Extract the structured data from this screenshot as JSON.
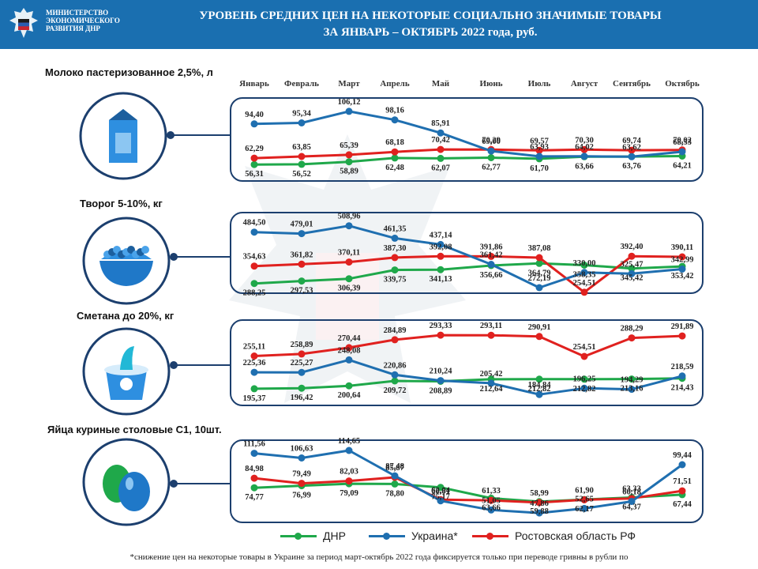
{
  "header": {
    "ministry_lines": [
      "МИНИСТЕРСТВО",
      "ЭКОНОМИЧЕСКОГО",
      "РАЗВИТИЯ ДНР"
    ],
    "title_line1": "УРОВЕНЬ СРЕДНИХ ЦЕН НА НЕКОТОРЫЕ СОЦИАЛЬНО ЗНАЧИМЫЕ ТОВАРЫ",
    "title_line2": "ЗА ЯНВАРЬ – ОКТЯБРЬ 2022 года, руб."
  },
  "months": [
    "Январь",
    "Февраль",
    "Март",
    "Апрель",
    "Май",
    "Июнь",
    "Июль",
    "Август",
    "Сентябрь",
    "Октябрь"
  ],
  "colors": {
    "dnr": "#1fa84a",
    "ukraine": "#1f6fb0",
    "rostov": "#e0211f",
    "header": "#1a6fb0",
    "panel_border": "#1c3f6e"
  },
  "products": [
    {
      "title": "Молоко пастеризованное 2,5%, л",
      "icon": "milk-carton-icon"
    },
    {
      "title": "Творог 5-10%, кг",
      "icon": "cottage-cheese-bowl-icon"
    },
    {
      "title": "Сметана до 20%, кг",
      "icon": "sour-cream-cup-icon"
    },
    {
      "title": "Яйца куриные столовые С1, 10шт.",
      "icon": "eggs-icon"
    }
  ],
  "legend": [
    "ДНР",
    "Украина*",
    "Ростовская область РФ"
  ],
  "footnote": "*снижение цен на некоторые товары в Украине за период март-октябрь 2022 года фиксируется только при переводе гривны в рубли по",
  "chart_data": [
    {
      "type": "line",
      "title": "Молоко пастеризованное 2,5%, л",
      "categories": [
        "Январь",
        "Февраль",
        "Март",
        "Апрель",
        "Май",
        "Июнь",
        "Июль",
        "Август",
        "Сентябрь",
        "Октябрь"
      ],
      "ylim": [
        52,
        112
      ],
      "series": [
        {
          "name": "ДНР",
          "values": [
            56.31,
            56.52,
            58.89,
            62.48,
            62.07,
            62.77,
            61.7,
            63.66,
            63.76,
            64.21
          ],
          "labels": [
            "56,31",
            "56,52",
            "58,89",
            "62,48",
            "62,07",
            "62,77",
            "61,70",
            "63,66",
            "63,76",
            "64,21"
          ]
        },
        {
          "name": "Украина*",
          "values": [
            94.4,
            95.34,
            106.12,
            98.16,
            85.91,
            69.0,
            63.93,
            64.02,
            63.62,
            68.33
          ],
          "labels": [
            "94,40",
            "95,34",
            "106,12",
            "98,16",
            "85,91",
            "69,00",
            "63,93",
            "64,02",
            "63,62",
            "68,33"
          ]
        },
        {
          "name": "Ростовская область РФ",
          "values": [
            62.29,
            63.85,
            65.39,
            68.18,
            70.42,
            70.29,
            69.57,
            70.3,
            69.74,
            70.02
          ],
          "labels": [
            "62,29",
            "63,85",
            "65,39",
            "68,18",
            "70,42",
            "70,29",
            "69,57",
            "70,30",
            "69,74",
            "70,02"
          ]
        }
      ]
    },
    {
      "type": "line",
      "title": "Творог 5-10%, кг",
      "categories": [
        "Январь",
        "Февраль",
        "Март",
        "Апрель",
        "Май",
        "Июнь",
        "Июль",
        "Август",
        "Сентябрь",
        "Октябрь"
      ],
      "ylim": [
        260,
        520
      ],
      "series": [
        {
          "name": "ДНР",
          "values": [
            288.25,
            297.53,
            306.39,
            339.75,
            341.13,
            356.66,
            364.79,
            358.35,
            345.42,
            353.42
          ],
          "labels": [
            "288,25",
            "297,53",
            "306,39",
            "339,75",
            "341,13",
            "356,66",
            "364,79",
            "358,35",
            "345,42",
            "353,42"
          ]
        },
        {
          "name": "Украина*",
          "values": [
            484.5,
            479.01,
            508.96,
            461.35,
            437.14,
            361.42,
            272.19,
            330.0,
            325.47,
            342.99
          ],
          "labels": [
            "484,50",
            "479,01",
            "508,96",
            "461,35",
            "437,14",
            "361,42",
            "272,19",
            "330,00",
            "325,47",
            "342,99"
          ]
        },
        {
          "name": "Ростовская область РФ",
          "values": [
            354.63,
            361.82,
            370.11,
            387.3,
            392.08,
            391.86,
            387.08,
            254.51,
            392.4,
            390.11
          ],
          "labels": [
            "354,63",
            "361,82",
            "370,11",
            "387,30",
            "392,08",
            "391,86",
            "387,08",
            "254,51",
            "392,40",
            "390,11"
          ]
        }
      ]
    },
    {
      "type": "line",
      "title": "Сметана до 20%, кг",
      "categories": [
        "Январь",
        "Февраль",
        "Март",
        "Апрель",
        "Май",
        "Июнь",
        "Июль",
        "Август",
        "Сентябрь",
        "Октябрь"
      ],
      "ylim": [
        175,
        305
      ],
      "series": [
        {
          "name": "ДНР",
          "values": [
            195.37,
            196.42,
            200.64,
            209.72,
            208.89,
            212.64,
            212.82,
            212.82,
            213.16,
            214.43
          ],
          "labels": [
            "195,37",
            "196,42",
            "200,64",
            "209,72",
            "208,89",
            "212,64",
            "212,82",
            "212,82",
            "213,16",
            "214,43"
          ]
        },
        {
          "name": "Украина*",
          "values": [
            225.36,
            225.27,
            248.08,
            220.86,
            210.24,
            205.42,
            184.84,
            196.25,
            194.29,
            218.59
          ],
          "labels": [
            "225,36",
            "225,27",
            "248,08",
            "220,86",
            "210,24",
            "205,42",
            "184,84",
            "196,25",
            "194,29",
            "218,59"
          ]
        },
        {
          "name": "Ростовская область РФ",
          "values": [
            255.11,
            258.89,
            270.44,
            284.89,
            293.33,
            293.11,
            290.91,
            254.51,
            288.29,
            291.89
          ],
          "labels": [
            "255,11",
            "258,89",
            "270,44",
            "284,89",
            "293,33",
            "293,11",
            "290,91",
            "254,51",
            "288,29",
            "291,89"
          ]
        }
      ]
    },
    {
      "type": "line",
      "title": "Яйца куриные столовые С1, 10шт.",
      "categories": [
        "Январь",
        "Февраль",
        "Март",
        "Апрель",
        "Май",
        "Июнь",
        "Июль",
        "Август",
        "Сентябрь",
        "Октябрь"
      ],
      "ylim": [
        42,
        118
      ],
      "series": [
        {
          "name": "ДНР",
          "values": [
            74.77,
            76.99,
            79.09,
            78.8,
            75.17,
            63.66,
            59.88,
            62.17,
            64.37,
            67.44
          ],
          "labels": [
            "74,77",
            "76,99",
            "79,09",
            "78,80",
            "75,17",
            "63,66",
            "59,88",
            "62,17",
            "64,37",
            "67,44"
          ]
        },
        {
          "name": "Украина*",
          "values": [
            111.56,
            106.63,
            114.65,
            87.48,
            60.81,
            51.05,
            47.86,
            52.65,
            60.18,
            99.44
          ],
          "labels": [
            "111,56",
            "106,63",
            "114,65",
            "87,48",
            "60,81",
            "51,05",
            "47,86",
            "52,65",
            "60,18",
            "99,44"
          ]
        },
        {
          "name": "Ростовская область РФ",
          "values": [
            84.98,
            79.49,
            82.03,
            85.87,
            62.04,
            61.33,
            58.99,
            61.9,
            63.33,
            71.51
          ],
          "labels": [
            "84,98",
            "79,49",
            "82,03",
            "85,87",
            "62,04",
            "61,33",
            "58,99",
            "61,90",
            "63,33",
            "71,51"
          ]
        }
      ]
    }
  ]
}
